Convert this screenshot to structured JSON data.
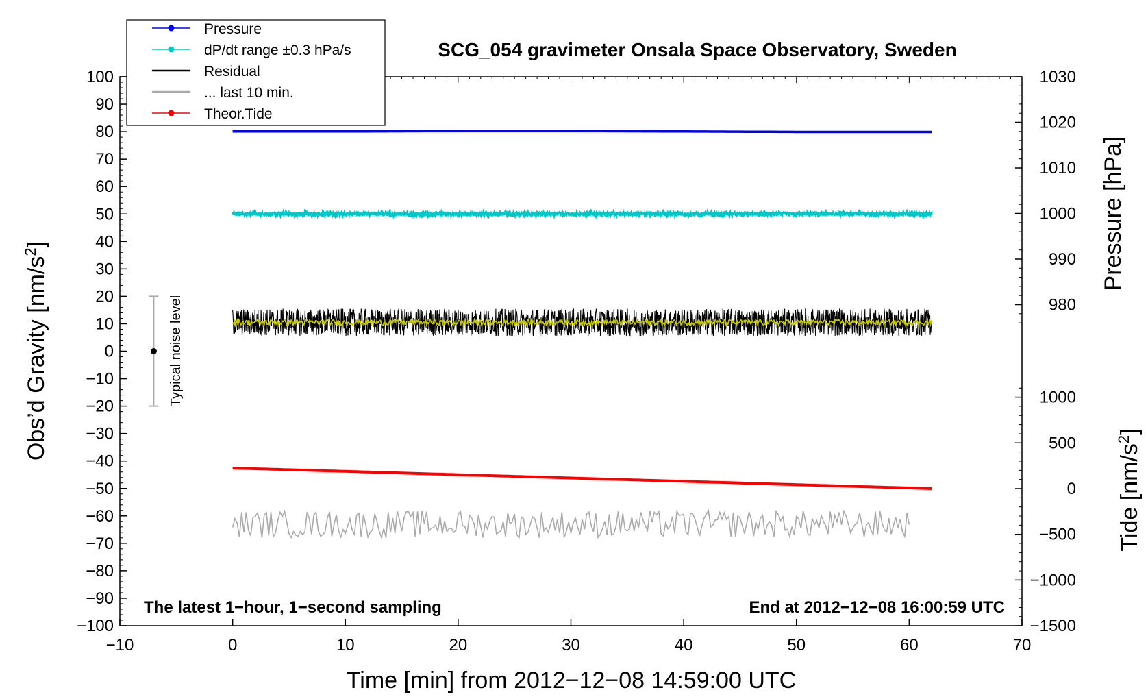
{
  "chart_data": {
    "type": "line",
    "title": "SCG_054 gravimeter Onsala Space Observatory, Sweden",
    "xlabel": "Time [min] from 2012−12−08 14:59:00 UTC",
    "xlim": [
      -10,
      70
    ],
    "x_ticks": [
      "−10",
      "0",
      "10",
      "20",
      "30",
      "40",
      "50",
      "60",
      "70"
    ],
    "left_axis": {
      "label_main": "Obs’d Gravity [nm/s",
      "label_sup": "2",
      "label_end": "]",
      "ylim": [
        -100,
        100
      ],
      "ticks": [
        "100",
        "90",
        "80",
        "70",
        "60",
        "50",
        "40",
        "30",
        "20",
        "10",
        "0",
        "−10",
        "−20",
        "−30",
        "−40",
        "−50",
        "−60",
        "−70",
        "−80",
        "−90",
        "−100"
      ]
    },
    "right_axis_pressure": {
      "label": "Pressure [hPa]",
      "ticks": [
        "1030",
        "1020",
        "1010",
        "1000",
        "990",
        "980"
      ]
    },
    "right_axis_tide": {
      "label_main": "Tide [nm/s",
      "label_sup": "2",
      "label_end": "]",
      "ticks": [
        "1000",
        "500",
        "0",
        "−500",
        "−1000",
        "−1500"
      ]
    },
    "grid": false,
    "legend_position": "top-left",
    "legend": [
      {
        "label": "Pressure",
        "color": "#0000ff",
        "marker": true
      },
      {
        "label": "dP/dt range ±0.3 hPa/s",
        "color": "#00c8c8",
        "marker": true
      },
      {
        "label": "Residual",
        "color": "#000000",
        "marker": false
      },
      {
        "label": "... last 10 min.",
        "color": "#aaaaaa",
        "marker": false
      },
      {
        "label": "Theor.Tide",
        "color": "#ff0000",
        "marker": true
      }
    ],
    "annotations": {
      "bottom_left": "The latest 1−hour, 1−second sampling",
      "bottom_right": "End at 2012−12−08 16:00:59 UTC",
      "noise_label": "Typical noise level"
    },
    "noise_level": {
      "center": 0,
      "low": -20,
      "high": 20
    },
    "series": [
      {
        "name": "Pressure",
        "axis": "pressure_hPa",
        "color": "#0000ff",
        "x": [
          0,
          10,
          20,
          30,
          40,
          50,
          62
        ],
        "y": [
          1018.0,
          1018.0,
          1018.1,
          1018.1,
          1018.0,
          1017.9,
          1017.9
        ]
      },
      {
        "name": "dP/dt range ±0.3 hPa/s",
        "axis": "gravity_nm_s2",
        "color": "#00c8c8",
        "x": [
          0,
          62
        ],
        "y": [
          50,
          50
        ],
        "noise_amplitude": 0.6
      },
      {
        "name": "Residual",
        "axis": "gravity_nm_s2",
        "color": "#000000",
        "x": [
          0,
          62
        ],
        "y": [
          10.5,
          10.5
        ],
        "noise_amplitude": 5
      },
      {
        "name": "Residual (smoothed)",
        "axis": "gravity_nm_s2",
        "color": "#c8c800",
        "x": [
          0,
          62
        ],
        "y": [
          10.5,
          10.5
        ],
        "noise_amplitude": 1
      },
      {
        "name": "... last 10 min.",
        "axis": "gravity_nm_s2",
        "color": "#aaaaaa",
        "x": [
          0,
          60
        ],
        "y": [
          -63,
          -63
        ],
        "noise_amplitude": 5
      },
      {
        "name": "Theor.Tide",
        "axis": "tide_nm_s2",
        "color": "#ff0000",
        "x": [
          0,
          62
        ],
        "y": [
          225,
          0
        ]
      }
    ]
  }
}
